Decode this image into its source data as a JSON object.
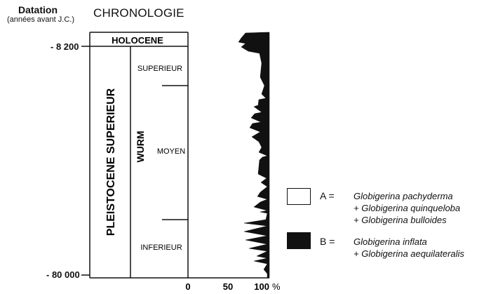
{
  "header": {
    "datation_title": "Datation",
    "datation_subtitle": "(années avant J.C.)",
    "chronology_title": "CHRONOLOGIE"
  },
  "ages": {
    "top": "- 8 200",
    "bottom": "- 80 000"
  },
  "chronology": {
    "holocene": "HOLOCENE",
    "pleistocene": "PLEISTOCENE SUPERIEUR",
    "wurm": "WURM",
    "superieur": "SUPERIEUR",
    "moyen": "MOYEN",
    "inferieur": "INFERIEUR"
  },
  "axis": {
    "ticks": [
      "0",
      "50",
      "100"
    ],
    "unit": "%"
  },
  "legend": [
    {
      "code": "A =",
      "fill": "#ffffff",
      "lines": [
        "Globigerina pachyderma",
        "+ Globigerina quinqueloba",
        "+ Globigerina bulloides"
      ]
    },
    {
      "code": "B =",
      "fill": "#111111",
      "lines": [
        "Globigerina inflata",
        "+ Globigerina aequilateralis"
      ]
    }
  ],
  "colors": {
    "ink": "#111111",
    "paper": "#ffffff"
  }
}
